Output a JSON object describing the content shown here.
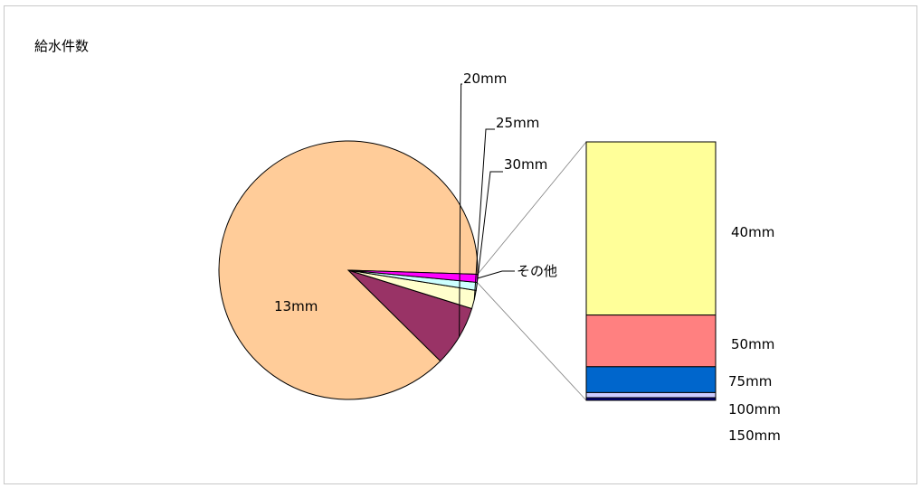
{
  "chart_data": {
    "type": "pie",
    "title": "給水件数",
    "pie": {
      "slices": [
        {
          "label": "13mm",
          "value": 88.1,
          "color": "#FFCC99"
        },
        {
          "label": "20mm",
          "value": 7.6,
          "color": "#993366"
        },
        {
          "label": "25mm",
          "value": 2.3,
          "color": "#FFFFCC"
        },
        {
          "label": "30mm",
          "value": 1.0,
          "color": "#CCFFFF"
        },
        {
          "label": "その他",
          "value": 1.0,
          "color": "#FF00FF"
        }
      ]
    },
    "breakdown": {
      "of": "その他",
      "type": "stacked-bar",
      "segments": [
        {
          "label": "40mm",
          "value": 67,
          "color": "#FFFF99"
        },
        {
          "label": "50mm",
          "value": 20,
          "color": "#FF8080"
        },
        {
          "label": "75mm",
          "value": 10,
          "color": "#0066CC"
        },
        {
          "label": "100mm",
          "value": 2,
          "color": "#CCCCFF"
        },
        {
          "label": "150mm",
          "value": 1,
          "color": "#000080"
        }
      ]
    },
    "legend": "none"
  }
}
